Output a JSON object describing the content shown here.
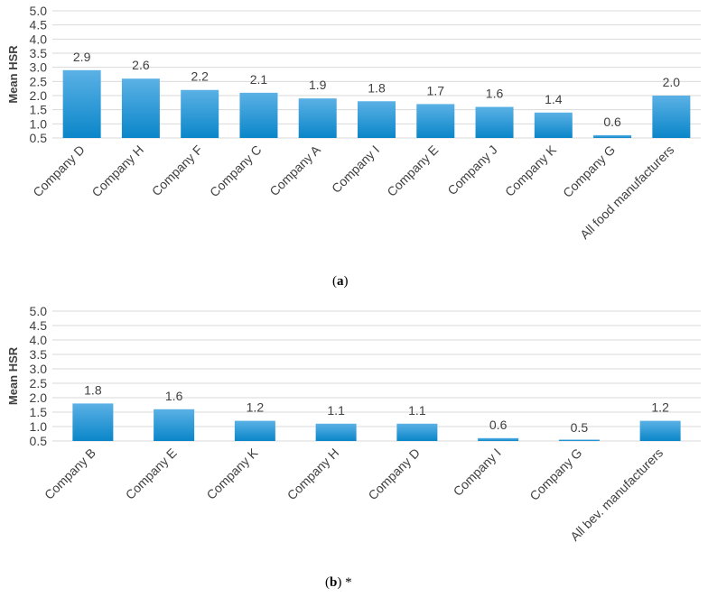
{
  "colors": {
    "bar_top": "#5bb1e5",
    "bar_bottom": "#0a86c9",
    "grid": "#d9d9d9",
    "text": "#404040"
  },
  "chart_data": [
    {
      "type": "bar",
      "ylabel": "Mean HSR",
      "ylim": [
        0.5,
        5.0
      ],
      "yticks": [
        "0.5",
        "1.0",
        "1.5",
        "2.0",
        "2.5",
        "3.0",
        "3.5",
        "4.0",
        "4.5",
        "5.0"
      ],
      "grid": true,
      "categories": [
        "Company D",
        "Company H",
        "Company F",
        "Company C",
        "Company A",
        "Company I",
        "Company E",
        "Company J",
        "Company K",
        "Company G",
        "All food manufacturers"
      ],
      "values": [
        2.9,
        2.6,
        2.2,
        2.1,
        1.9,
        1.8,
        1.7,
        1.6,
        1.4,
        0.6,
        2.0
      ],
      "labels": [
        "2.9",
        "2.6",
        "2.2",
        "2.1",
        "1.9",
        "1.8",
        "1.7",
        "1.6",
        "1.4",
        "0.6",
        "2.0"
      ],
      "caption": {
        "open": "(",
        "letter": "a",
        "close": ")",
        "suffix": ""
      }
    },
    {
      "type": "bar",
      "ylabel": "Mean HSR",
      "ylim": [
        0.5,
        5.0
      ],
      "yticks": [
        "0.5",
        "1.0",
        "1.5",
        "2.0",
        "2.5",
        "3.0",
        "3.5",
        "4.0",
        "4.5",
        "5.0"
      ],
      "grid": true,
      "categories": [
        "Company B",
        "Company E",
        "Company K",
        "Company H",
        "Company D",
        "Company I",
        "Company G",
        "All bev. manufacturers"
      ],
      "values": [
        1.8,
        1.6,
        1.2,
        1.1,
        1.1,
        0.6,
        0.5,
        1.2
      ],
      "labels": [
        "1.8",
        "1.6",
        "1.2",
        "1.1",
        "1.1",
        "0.6",
        "0.5",
        "1.2"
      ],
      "caption": {
        "open": "(",
        "letter": "b",
        "close": ")",
        "suffix": " *"
      }
    }
  ]
}
